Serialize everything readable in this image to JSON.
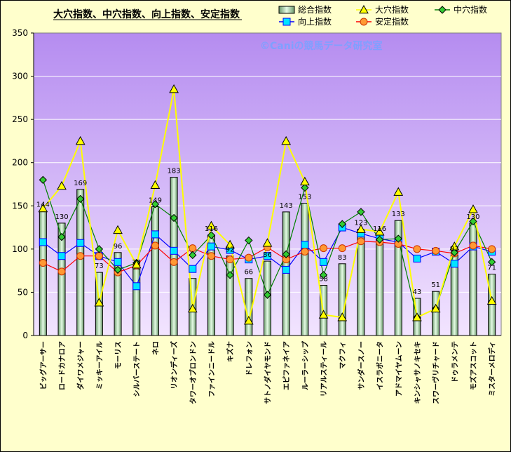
{
  "chart_data": {
    "type": "bar",
    "title": "大穴指数、中穴指数、向上指数、安定指数",
    "watermark": "©Caniの競馬データ研究室",
    "ylim": [
      0,
      350
    ],
    "yticks": [
      0,
      50,
      100,
      150,
      200,
      250,
      300,
      350
    ],
    "categories": [
      "ビッグアーサー",
      "ロードカナロア",
      "ダイワメジャー",
      "ミッキーアイル",
      "モーリス",
      "シルバーステート",
      "ネロ",
      "リオンディーズ",
      "タワーオブロンドン",
      "ファインニードル",
      "キズナ",
      "ドレフォン",
      "サトノダイヤモンド",
      "エピファネイア",
      "ルーラーシップ",
      "リアルスティール",
      "マクフィ",
      "サンダースノー",
      "イスラボニータ",
      "アドマイヤムーン",
      "キンシャサノキセキ",
      "スワーヴリチャード",
      "ドゥラメンテ",
      "モズアスコット",
      "ミスターメロディ"
    ],
    "series": [
      {
        "name": "総合指数",
        "type": "bar",
        "color": "#c8f0c8",
        "values": [
          144,
          130,
          169,
          73,
          96,
          77,
          149,
          183,
          66,
          116,
          92,
          66,
          86,
          143,
          153,
          58,
          83,
          123,
          116,
          133,
          43,
          51,
          93,
          130,
          71
        ]
      },
      {
        "name": "大穴指数",
        "type": "line",
        "color": "#ffff00",
        "marker": "triangle",
        "values": [
          147,
          173,
          225,
          38,
          122,
          82,
          174,
          285,
          31,
          127,
          105,
          17,
          107,
          225,
          178,
          24,
          21,
          123,
          120,
          166,
          21,
          31,
          103,
          146,
          40
        ]
      },
      {
        "name": "中穴指数",
        "type": "line",
        "color": "#008000",
        "marker": "diamond",
        "values": [
          180,
          114,
          158,
          100,
          76,
          84,
          152,
          136,
          93,
          116,
          70,
          110,
          47,
          94,
          171,
          70,
          129,
          143,
          111,
          112,
          21,
          31,
          96,
          132,
          85
        ]
      },
      {
        "name": "向上指数",
        "type": "line",
        "color": "#0000ff",
        "marker": "square",
        "values": [
          108,
          92,
          107,
          92,
          85,
          57,
          117,
          98,
          77,
          103,
          99,
          88,
          92,
          76,
          105,
          85,
          125,
          118,
          112,
          108,
          89,
          97,
          83,
          103,
          97
        ]
      },
      {
        "name": "安定指数",
        "type": "line",
        "color": "#ff0000",
        "marker": "circle",
        "values": [
          84,
          74,
          92,
          92,
          73,
          81,
          104,
          85,
          101,
          92,
          88,
          90,
          102,
          88,
          97,
          101,
          101,
          109,
          108,
          106,
          100,
          98,
          95,
          104,
          100
        ]
      }
    ],
    "data_labels": [
      "144",
      "130",
      "169",
      "73",
      "96",
      "77",
      "149",
      "183",
      "",
      "116",
      "92",
      "66",
      "86",
      "143",
      "153",
      "58",
      "83",
      "123",
      "116",
      "133",
      "43",
      "51",
      "93",
      "130",
      "71"
    ],
    "legend": {
      "placement": "top-right"
    },
    "grid": true
  }
}
